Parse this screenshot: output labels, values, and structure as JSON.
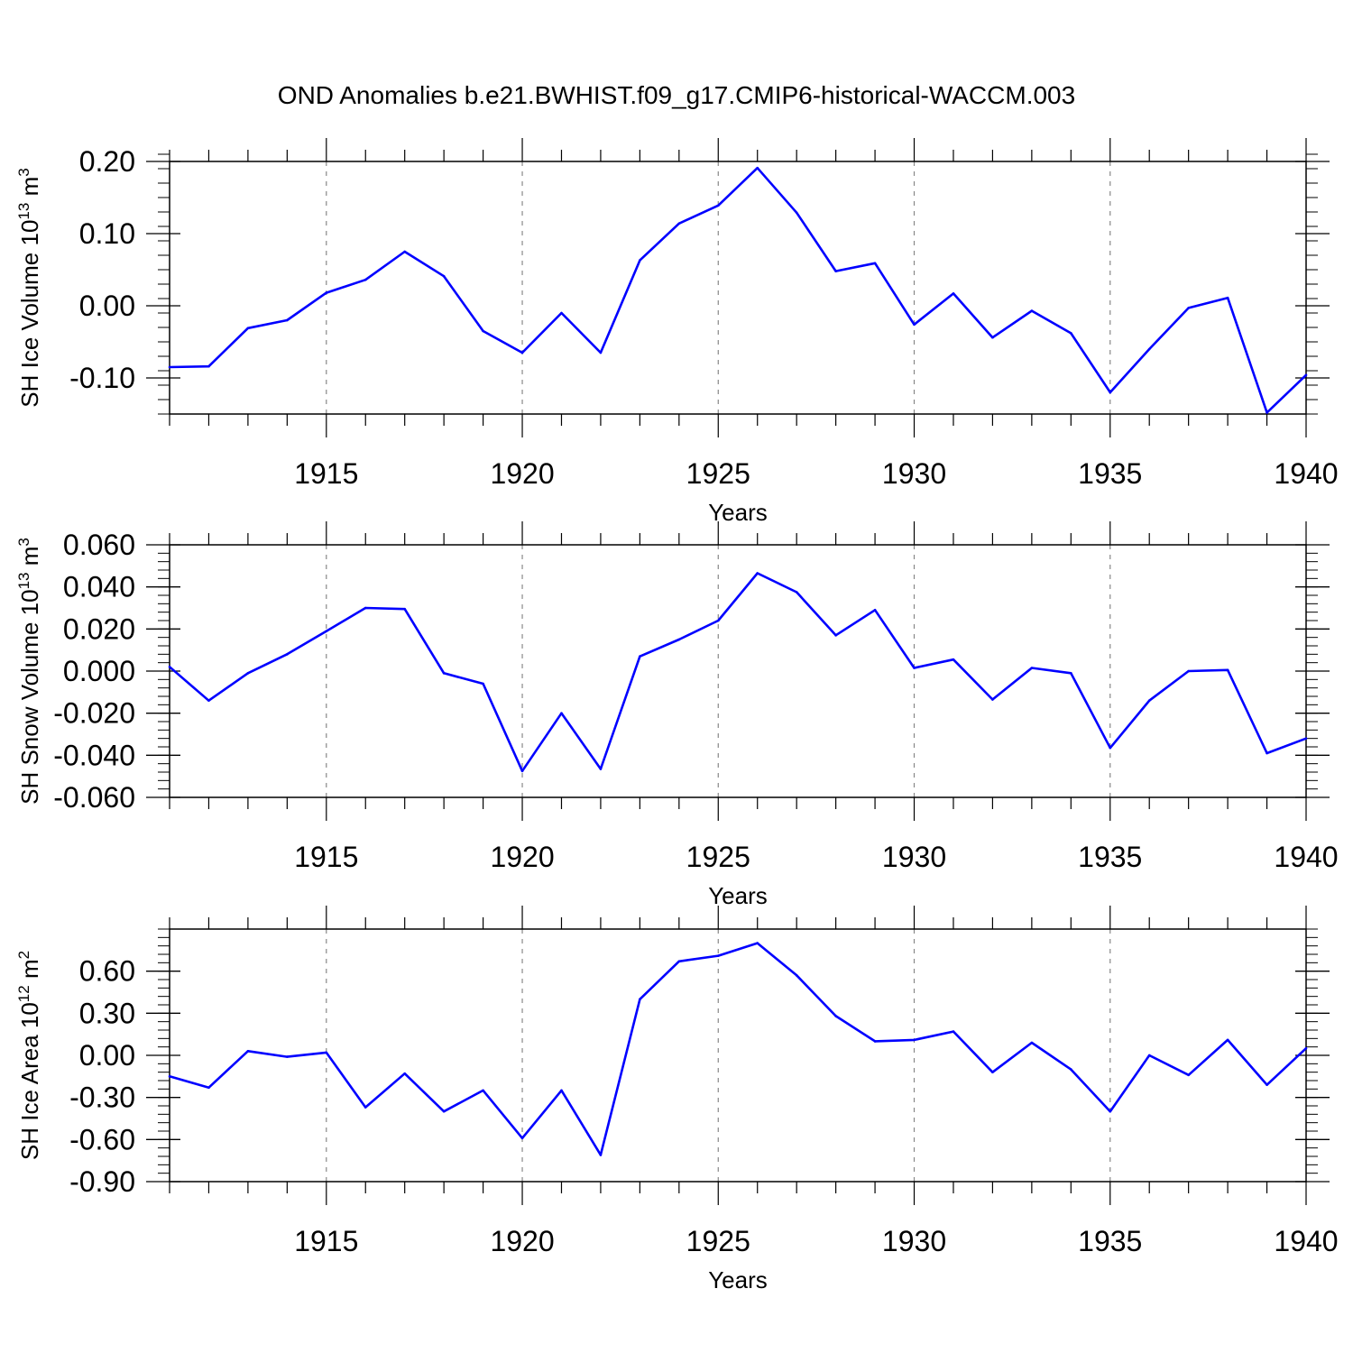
{
  "title": "OND Anomalies b.e21.BWHIST.f09_g17.CMIP6-historical-WACCM.003",
  "line_color": "#0000ff",
  "grid_color": "#888888",
  "chart_data": [
    {
      "type": "line",
      "ylabel": {
        "main": "SH Ice Volume 10",
        "exp": "13",
        "unit": " m",
        "unit_exp": "3"
      },
      "xlabel": "Years",
      "xlim": [
        1911,
        1940
      ],
      "ylim": [
        -0.15,
        0.2
      ],
      "yticks": [
        -0.1,
        0.0,
        0.1,
        0.2
      ],
      "ytick_labels": [
        "-0.10",
        "0.00",
        "0.10",
        "0.20"
      ],
      "y_minor_step": 0.02,
      "xticks": [
        1915,
        1920,
        1925,
        1930,
        1935,
        1940
      ],
      "xtick_labels": [
        "1915",
        "1920",
        "1925",
        "1930",
        "1935",
        "1940"
      ],
      "x": [
        1911,
        1912,
        1913,
        1914,
        1915,
        1916,
        1917,
        1918,
        1919,
        1920,
        1921,
        1922,
        1923,
        1924,
        1925,
        1926,
        1927,
        1928,
        1929,
        1930,
        1931,
        1932,
        1933,
        1934,
        1935,
        1936,
        1937,
        1938,
        1939,
        1940
      ],
      "values": [
        -0.085,
        -0.084,
        -0.031,
        -0.02,
        0.018,
        0.036,
        0.075,
        0.041,
        -0.035,
        -0.065,
        -0.01,
        -0.065,
        0.063,
        0.114,
        0.139,
        0.191,
        0.129,
        0.048,
        0.059,
        -0.026,
        0.017,
        -0.044,
        -0.007,
        -0.038,
        -0.12,
        -0.06,
        -0.003,
        0.011,
        -0.148,
        -0.096
      ],
      "grid": "x-major-dashed"
    },
    {
      "type": "line",
      "ylabel": {
        "main": "SH Snow Volume 10",
        "exp": "13",
        "unit": " m",
        "unit_exp": "3"
      },
      "xlabel": "Years",
      "xlim": [
        1911,
        1940
      ],
      "ylim": [
        -0.06,
        0.06
      ],
      "yticks": [
        -0.06,
        -0.04,
        -0.02,
        0.0,
        0.02,
        0.04,
        0.06
      ],
      "ytick_labels": [
        "-0.060",
        "-0.040",
        "-0.020",
        "0.000",
        "0.020",
        "0.040",
        "0.060"
      ],
      "y_minor_step": 0.004,
      "xticks": [
        1915,
        1920,
        1925,
        1930,
        1935,
        1940
      ],
      "xtick_labels": [
        "1915",
        "1920",
        "1925",
        "1930",
        "1935",
        "1940"
      ],
      "x": [
        1911,
        1912,
        1913,
        1914,
        1915,
        1916,
        1917,
        1918,
        1919,
        1920,
        1921,
        1922,
        1923,
        1924,
        1925,
        1926,
        1927,
        1928,
        1929,
        1930,
        1931,
        1932,
        1933,
        1934,
        1935,
        1936,
        1937,
        1938,
        1939,
        1940
      ],
      "values": [
        0.002,
        -0.014,
        -0.001,
        0.008,
        0.019,
        0.03,
        0.0295,
        -0.001,
        -0.006,
        -0.0475,
        -0.02,
        -0.0465,
        0.007,
        0.015,
        0.024,
        0.0465,
        0.0375,
        0.017,
        0.029,
        0.0015,
        0.0055,
        -0.0135,
        0.0015,
        -0.001,
        -0.0365,
        -0.014,
        0.0,
        0.0005,
        -0.039,
        -0.032
      ],
      "grid": "x-major-dashed"
    },
    {
      "type": "line",
      "ylabel": {
        "main": "SH Ice Area 10",
        "exp": "12",
        "unit": " m",
        "unit_exp": "2"
      },
      "xlabel": "Years",
      "xlim": [
        1911,
        1940
      ],
      "ylim": [
        -0.9,
        0.9
      ],
      "yticks": [
        -0.9,
        -0.6,
        -0.3,
        0.0,
        0.3,
        0.6
      ],
      "ytick_labels": [
        "-0.90",
        "-0.60",
        "-0.30",
        "0.00",
        "0.30",
        "0.60"
      ],
      "y_minor_step": 0.06,
      "xticks": [
        1915,
        1920,
        1925,
        1930,
        1935,
        1940
      ],
      "xtick_labels": [
        "1915",
        "1920",
        "1925",
        "1930",
        "1935",
        "1940"
      ],
      "x": [
        1911,
        1912,
        1913,
        1914,
        1915,
        1916,
        1917,
        1918,
        1919,
        1920,
        1921,
        1922,
        1923,
        1924,
        1925,
        1926,
        1927,
        1928,
        1929,
        1930,
        1931,
        1932,
        1933,
        1934,
        1935,
        1936,
        1937,
        1938,
        1939,
        1940
      ],
      "values": [
        -0.15,
        -0.23,
        0.03,
        -0.01,
        0.02,
        -0.37,
        -0.13,
        -0.4,
        -0.25,
        -0.59,
        -0.25,
        -0.71,
        0.4,
        0.67,
        0.71,
        0.8,
        0.57,
        0.28,
        0.1,
        0.11,
        0.17,
        -0.12,
        0.09,
        -0.1,
        -0.4,
        0.0,
        -0.14,
        0.11,
        -0.21,
        0.05
      ],
      "grid": "x-major-dashed"
    }
  ]
}
